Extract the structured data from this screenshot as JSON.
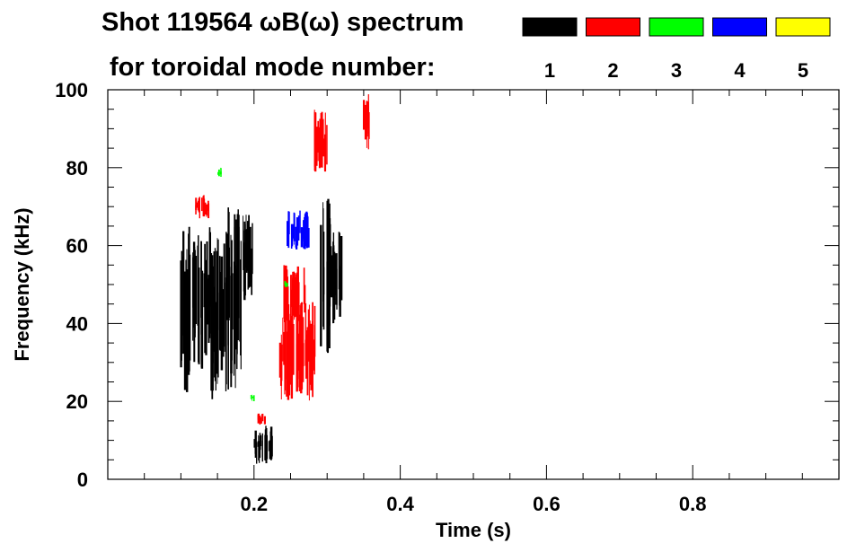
{
  "title_line1": "Shot 119564 ωB(ω) spectrum",
  "title_line2": "for toroidal mode number:",
  "legend": [
    {
      "label": "1",
      "color": "#000000"
    },
    {
      "label": "2",
      "color": "#ff0000"
    },
    {
      "label": "3",
      "color": "#00ff00"
    },
    {
      "label": "4",
      "color": "#0000ff"
    },
    {
      "label": "5",
      "color": "#ffff00"
    }
  ],
  "chart_data": {
    "type": "spectrogram",
    "xlabel": "Time (s)",
    "ylabel": "Frequency (kHz)",
    "xlim": [
      0.0,
      1.0
    ],
    "ylim": [
      0,
      100
    ],
    "xticks": [
      0.2,
      0.4,
      0.6,
      0.8
    ],
    "xtick_labels": [
      "0.2",
      "0.4",
      "0.6",
      "0.8"
    ],
    "yticks": [
      0,
      20,
      40,
      60,
      80,
      100
    ],
    "ytick_labels": [
      "0",
      "20",
      "40",
      "60",
      "80",
      "100"
    ],
    "x_minor_step": 0.05,
    "y_minor_step": 5,
    "series": [
      {
        "name": "1",
        "color": "#000000",
        "regions": [
          {
            "t": [
              0.1,
              0.115
            ],
            "f": [
              22,
              66
            ]
          },
          {
            "t": [
              0.115,
              0.14
            ],
            "f": [
              28,
              65
            ]
          },
          {
            "t": [
              0.14,
              0.16
            ],
            "f": [
              20,
              62
            ]
          },
          {
            "t": [
              0.16,
              0.185
            ],
            "f": [
              22,
              70
            ]
          },
          {
            "t": [
              0.185,
              0.205
            ],
            "f": [
              45,
              68
            ]
          },
          {
            "t": [
              0.2,
              0.225
            ],
            "f": [
              4,
              14
            ]
          },
          {
            "t": [
              0.29,
              0.305
            ],
            "f": [
              30,
              72
            ]
          },
          {
            "t": [
              0.305,
              0.32
            ],
            "f": [
              40,
              65
            ]
          }
        ]
      },
      {
        "name": "2",
        "color": "#ff0000",
        "regions": [
          {
            "t": [
              0.12,
              0.14
            ],
            "f": [
              67,
              73
            ]
          },
          {
            "t": [
              0.235,
              0.285
            ],
            "f": [
              20,
              46
            ]
          },
          {
            "t": [
              0.24,
              0.27
            ],
            "f": [
              40,
              55
            ]
          },
          {
            "t": [
              0.205,
              0.215
            ],
            "f": [
              14,
              17
            ]
          },
          {
            "t": [
              0.28,
              0.3
            ],
            "f": [
              78,
              95
            ]
          },
          {
            "t": [
              0.35,
              0.36
            ],
            "f": [
              84,
              100
            ]
          }
        ]
      },
      {
        "name": "3",
        "color": "#00ff00",
        "regions": [
          {
            "t": [
              0.15,
              0.155
            ],
            "f": [
              77,
              80
            ]
          },
          {
            "t": [
              0.195,
              0.2
            ],
            "f": [
              20,
              22
            ]
          },
          {
            "t": [
              0.24,
              0.245
            ],
            "f": [
              49,
              51
            ]
          }
        ]
      },
      {
        "name": "4",
        "color": "#0000ff",
        "regions": [
          {
            "t": [
              0.245,
              0.275
            ],
            "f": [
              59,
              69
            ]
          }
        ]
      },
      {
        "name": "5",
        "color": "#ffff00",
        "regions": []
      }
    ]
  }
}
